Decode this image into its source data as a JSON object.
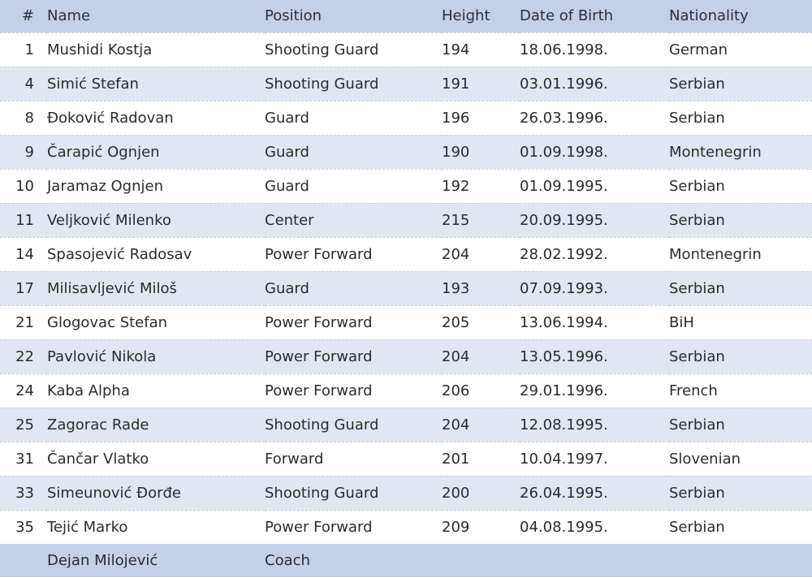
{
  "headers": {
    "num": "#",
    "name": "Name",
    "position": "Position",
    "height": "Height",
    "dob": "Date of Birth",
    "nationality": "Nationality"
  },
  "players": [
    {
      "num": "1",
      "name": "Mushidi Kostja",
      "position": "Shooting Guard",
      "height": "194",
      "dob": "18.06.1998.",
      "nationality": "German"
    },
    {
      "num": "4",
      "name": "Simić Stefan",
      "position": "Shooting Guard",
      "height": "191",
      "dob": "03.01.1996.",
      "nationality": "Serbian"
    },
    {
      "num": "8",
      "name": "Đoković Radovan",
      "position": "Guard",
      "height": "196",
      "dob": "26.03.1996.",
      "nationality": "Serbian"
    },
    {
      "num": "9",
      "name": "Čarapić Ognjen",
      "position": "Guard",
      "height": "190",
      "dob": "01.09.1998.",
      "nationality": "Montenegrin"
    },
    {
      "num": "10",
      "name": "Jaramaz Ognjen",
      "position": "Guard",
      "height": "192",
      "dob": "01.09.1995.",
      "nationality": "Serbian"
    },
    {
      "num": "11",
      "name": "Veljković Milenko",
      "position": "Center",
      "height": "215",
      "dob": "20.09.1995.",
      "nationality": "Serbian"
    },
    {
      "num": "14",
      "name": "Spasojević Radosav",
      "position": "Power Forward",
      "height": "204",
      "dob": "28.02.1992.",
      "nationality": "Montenegrin"
    },
    {
      "num": "17",
      "name": "Milisavljević Miloš",
      "position": "Guard",
      "height": "193",
      "dob": "07.09.1993.",
      "nationality": "Serbian"
    },
    {
      "num": "21",
      "name": "Glogovac Stefan",
      "position": "Power Forward",
      "height": "205",
      "dob": "13.06.1994.",
      "nationality": "BiH"
    },
    {
      "num": "22",
      "name": "Pavlović Nikola",
      "position": "Power Forward",
      "height": "204",
      "dob": "13.05.1996.",
      "nationality": "Serbian"
    },
    {
      "num": "24",
      "name": "Kaba Alpha",
      "position": "Power Forward",
      "height": "206",
      "dob": "29.01.1996.",
      "nationality": "French"
    },
    {
      "num": "25",
      "name": "Zagorac Rade",
      "position": "Shooting Guard",
      "height": "204",
      "dob": "12.08.1995.",
      "nationality": "Serbian"
    },
    {
      "num": "31",
      "name": "Čančar Vlatko",
      "position": "Forward",
      "height": "201",
      "dob": "10.04.1997.",
      "nationality": "Slovenian"
    },
    {
      "num": "33",
      "name": "Simeunović Đorđe",
      "position": "Shooting Guard",
      "height": "200",
      "dob": "26.04.1995.",
      "nationality": "Serbian"
    },
    {
      "num": "35",
      "name": "Tejić Marko",
      "position": "Power Forward",
      "height": "209",
      "dob": "04.08.1995.",
      "nationality": "Serbian"
    }
  ],
  "coach": {
    "name": "Dejan Milojević",
    "position": "Coach"
  },
  "colors": {
    "header_bg": "#c3d1e8",
    "alt_row_bg": "#e0e7f3"
  }
}
